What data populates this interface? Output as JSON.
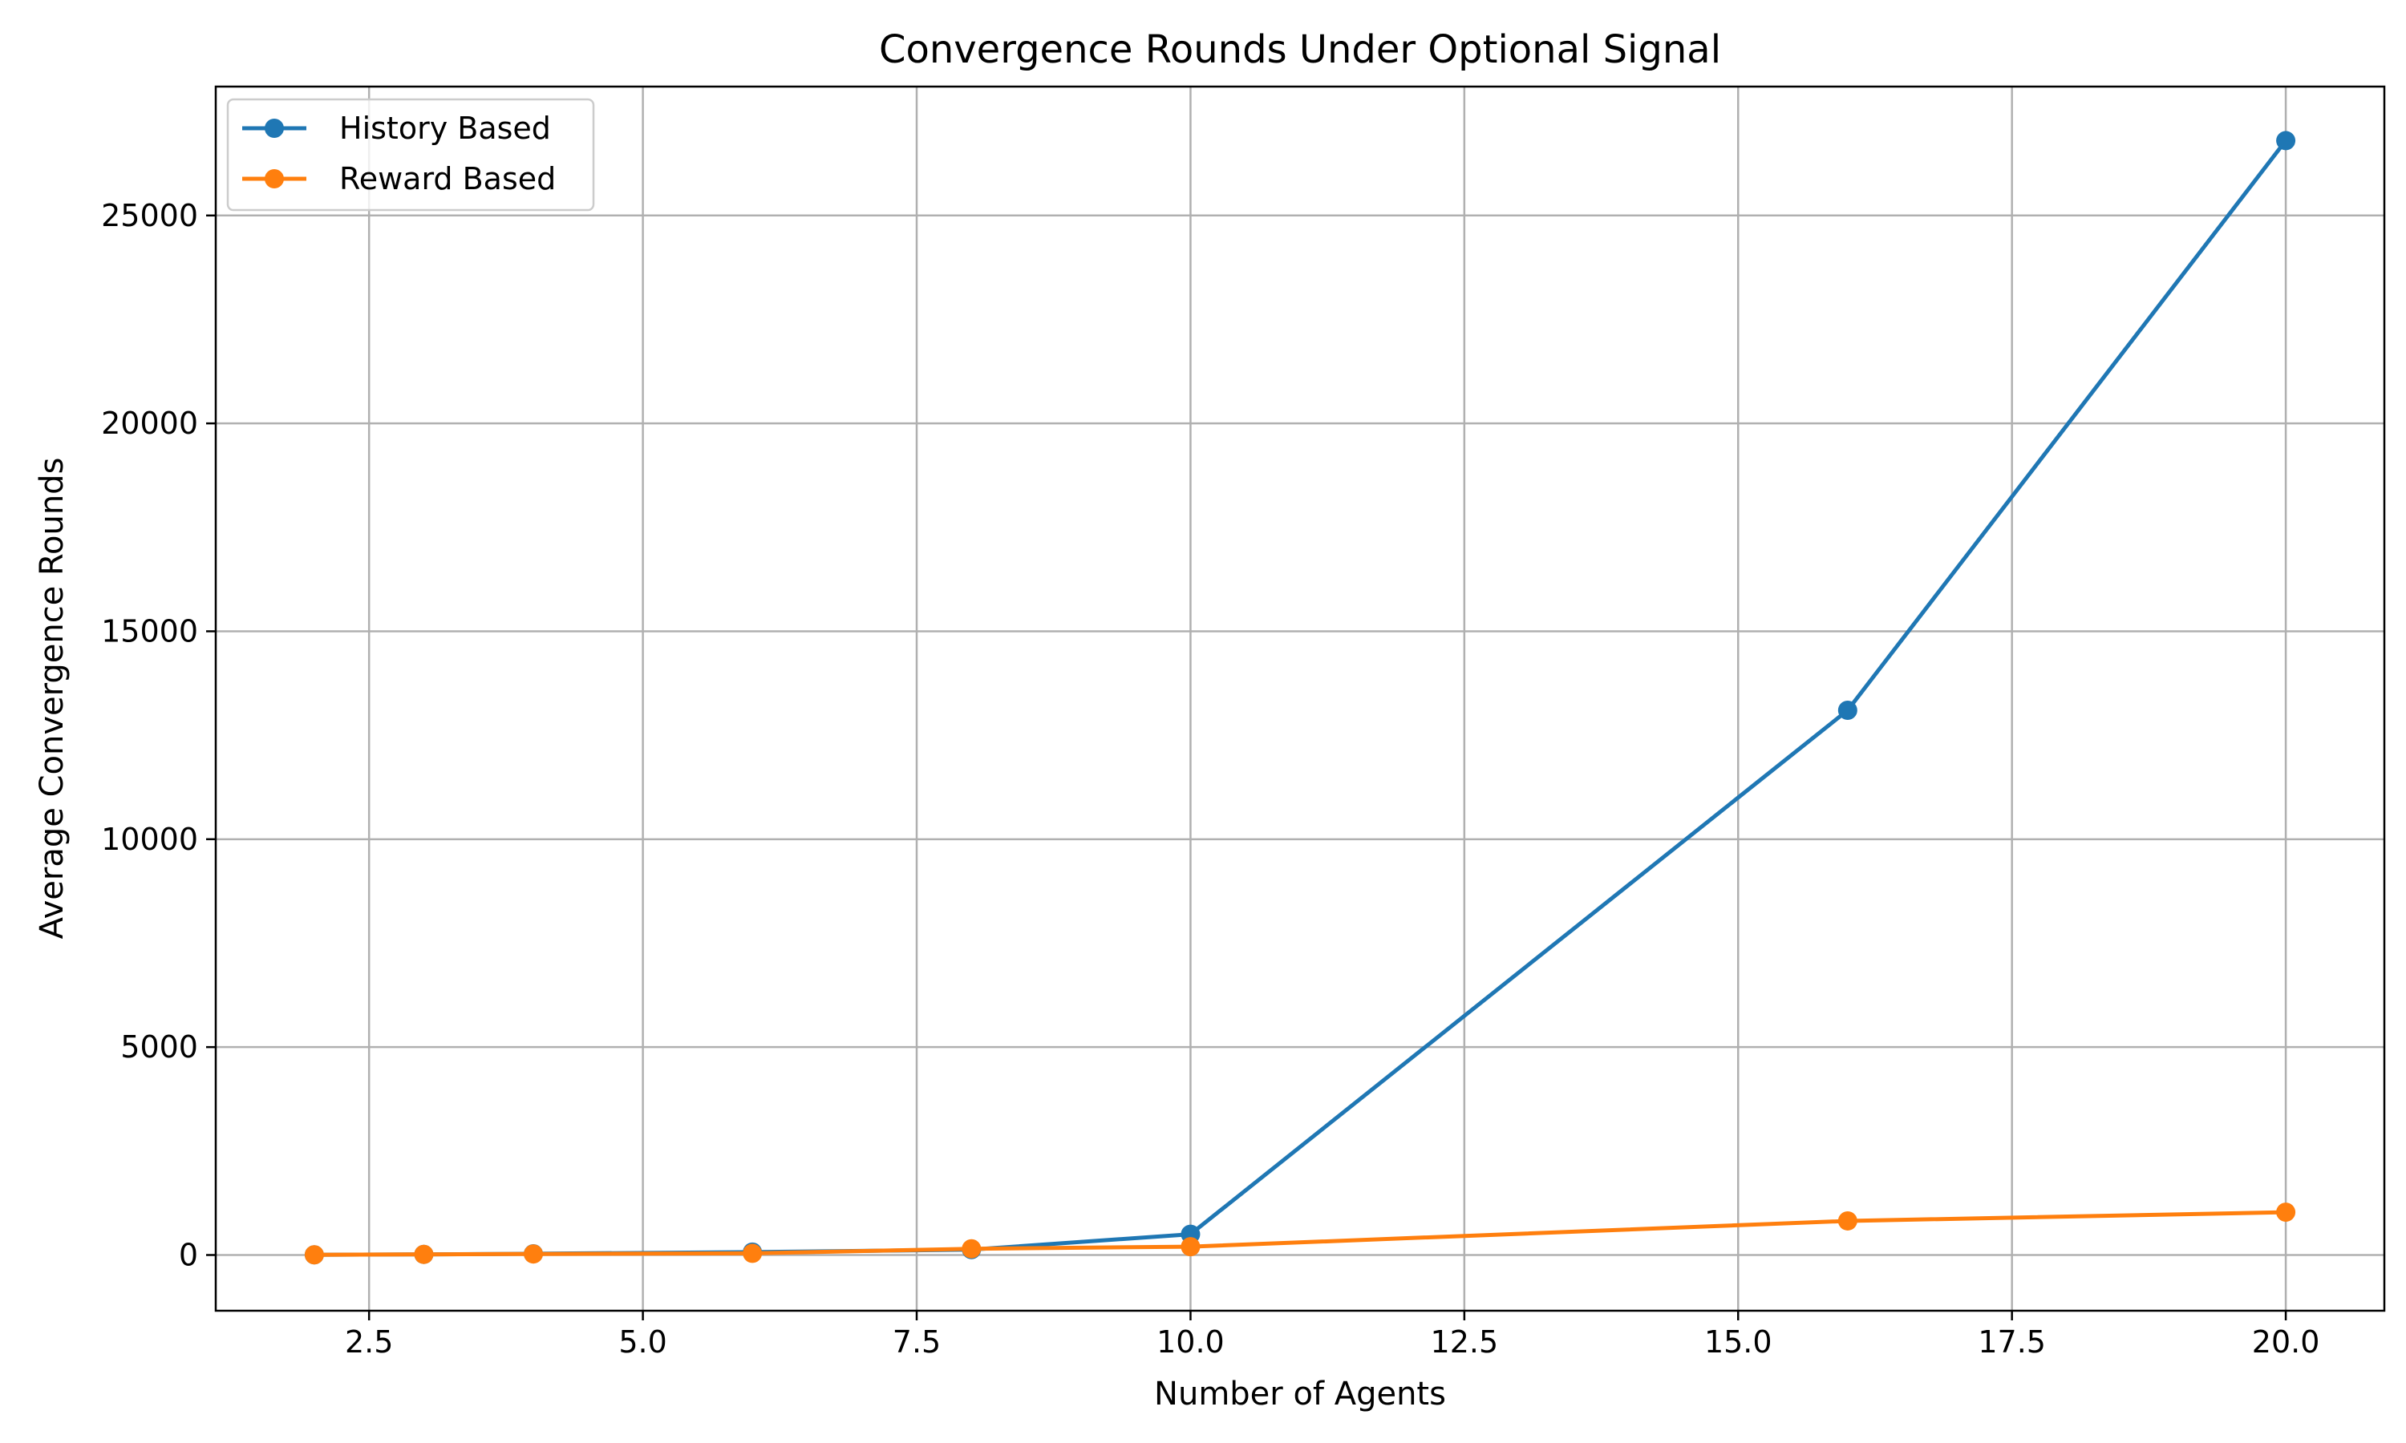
{
  "chart_data": {
    "type": "line",
    "title": "Convergence Rounds Under Optional Signal",
    "xlabel": "Number of Agents",
    "ylabel": "Average Convergence Rounds",
    "xlim": [
      1.1,
      20.9
    ],
    "ylim": [
      -1340,
      28100
    ],
    "xticks": [
      2.5,
      5.0,
      7.5,
      10.0,
      12.5,
      15.0,
      17.5,
      20.0
    ],
    "xtick_labels": [
      "2.5",
      "5.0",
      "7.5",
      "10.0",
      "12.5",
      "15.0",
      "17.5",
      "20.0"
    ],
    "yticks": [
      0,
      5000,
      10000,
      15000,
      20000,
      25000
    ],
    "ytick_labels": [
      "0",
      "5000",
      "10000",
      "15000",
      "20000",
      "25000"
    ],
    "grid": true,
    "legend_position": "top-left",
    "x": [
      2,
      3,
      4,
      6,
      8,
      10,
      16,
      20
    ],
    "series": [
      {
        "name": "History Based",
        "color": "#1f77b4",
        "values": [
          5,
          15,
          30,
          70,
          130,
          500,
          13100,
          26800
        ]
      },
      {
        "name": "Reward Based",
        "color": "#ff7f0e",
        "values": [
          5,
          15,
          25,
          40,
          150,
          200,
          820,
          1030
        ]
      }
    ]
  }
}
